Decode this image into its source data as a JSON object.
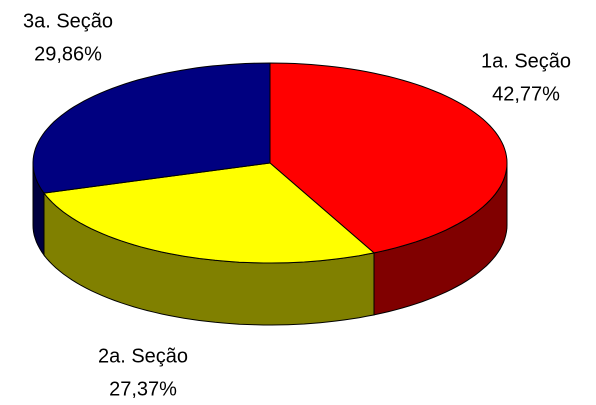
{
  "chart_data": {
    "type": "pie",
    "three_d": true,
    "categories": [
      "1a. Seção",
      "2a. Seção",
      "3a. Seção"
    ],
    "values": [
      42.77,
      27.37,
      29.86
    ],
    "value_labels": [
      "42,77%",
      "27,37%",
      "29,86%"
    ],
    "colors": [
      "#ff0000",
      "#ffff00",
      "#000080"
    ],
    "side_colors": [
      "#800000",
      "#808000",
      "#000040"
    ]
  }
}
